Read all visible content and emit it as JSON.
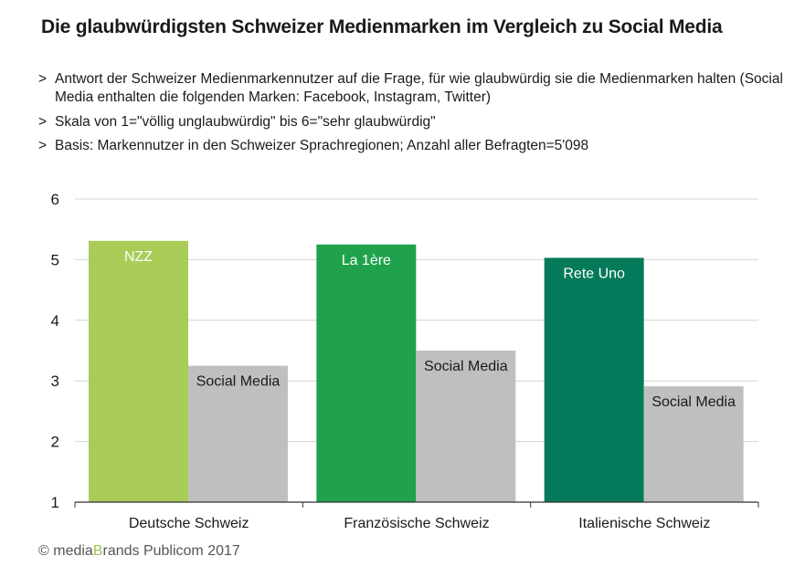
{
  "title": "Die glaubwürdigsten Schweizer Medienmarken im Vergleich zu Social Media",
  "notes": [
    "Antwort der Schweizer Medienmarkennutzer auf die Frage, für wie glaubwürdig sie die Medienmarken halten (Social Media enthalten die folgenden Marken: Facebook, Instagram, Twitter)",
    "Skala von 1=\"völlig unglaubwürdig\" bis 6=\"sehr glaubwürdig\"",
    "Basis: Markennutzer in den Schweizer Sprachregionen; Anzahl aller Befragten=5'098"
  ],
  "note_marker": ">",
  "footer": {
    "prefix": "© media",
    "brand": "B",
    "suffix": "rands Publicom 2017"
  },
  "chart_data": {
    "type": "bar",
    "categories": [
      "Deutsche Schweiz",
      "Französische Schweiz",
      "Italienische Schweiz"
    ],
    "ylim": [
      1,
      6
    ],
    "yticks": [
      1,
      2,
      3,
      4,
      5,
      6
    ],
    "grid": true,
    "bars": [
      {
        "category": "Deutsche Schweiz",
        "label": "NZZ",
        "value": 5.31,
        "color": "#a9cc57",
        "text_color": "#ffffff"
      },
      {
        "category": "Deutsche Schweiz",
        "label": "Social Media",
        "value": 3.25,
        "color": "#bfbfbf",
        "text_color": "#1a1a1a"
      },
      {
        "category": "Französische Schweiz",
        "label": "La 1ère",
        "value": 5.25,
        "color": "#1fa24b",
        "text_color": "#ffffff"
      },
      {
        "category": "Französische Schweiz",
        "label": "Social Media",
        "value": 3.5,
        "color": "#bfbfbf",
        "text_color": "#1a1a1a"
      },
      {
        "category": "Italienische Schweiz",
        "label": "Rete Uno",
        "value": 5.03,
        "color": "#047a5a",
        "text_color": "#ffffff"
      },
      {
        "category": "Italienische Schweiz",
        "label": "Social Media",
        "value": 2.91,
        "color": "#bfbfbf",
        "text_color": "#1a1a1a"
      }
    ]
  }
}
